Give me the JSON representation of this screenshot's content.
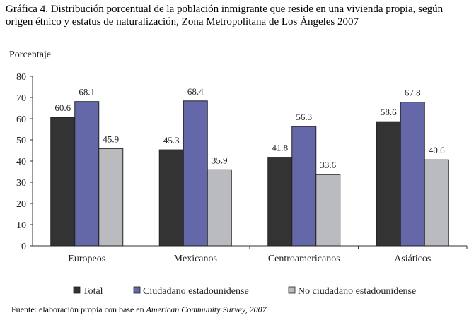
{
  "title": "Gráfica 4. Distribución porcentual de la población inmigrante que reside en una vivienda propia, según origen étnico y estatus de naturalización, Zona Metropolitana de Los Ángeles 2007",
  "source": {
    "prefix": "Fuente: elaboración propia con base en ",
    "italic": "American Community Survey, 2007"
  },
  "chart_data": {
    "type": "bar",
    "title": "Gráfica 4. Distribución porcentual de la población inmigrante que reside en una vivienda propia, según origen étnico y estatus de naturalización, Zona Metropolitana de Los Ángeles 2007",
    "ylabel": "Porcentaje",
    "xlabel": "",
    "ylim": [
      0,
      80
    ],
    "yticks": [
      0,
      10,
      20,
      30,
      40,
      50,
      60,
      70,
      80
    ],
    "categories": [
      "Europeos",
      "Mexicanos",
      "Centroamericanos",
      "Asiáticos"
    ],
    "series": [
      {
        "name": "Total",
        "color": "#333333",
        "values": [
          60.6,
          45.3,
          41.8,
          58.6
        ]
      },
      {
        "name": "Ciudadano estadounidense",
        "color": "#6468a8",
        "values": [
          68.1,
          68.4,
          56.3,
          67.8
        ]
      },
      {
        "name": "No ciudadano estadounidense",
        "color": "#b9bbbe",
        "values": [
          45.9,
          35.9,
          33.6,
          40.6
        ]
      }
    ],
    "legend_position": "bottom",
    "grid": false
  }
}
